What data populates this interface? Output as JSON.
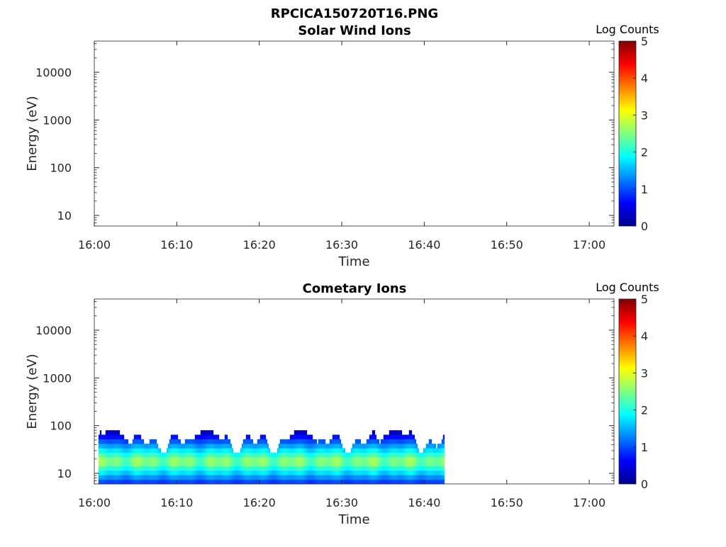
{
  "figure_title": "RPCICA150720T16.PNG",
  "chart_data": [
    {
      "type": "heatmap",
      "title": "Solar Wind Ions",
      "xlabel": "Time",
      "ylabel": "Energy (eV)",
      "x_ticks": [
        "16:00",
        "16:10",
        "16:20",
        "16:30",
        "16:40",
        "16:50",
        "17:00"
      ],
      "x_range_minutes": [
        0,
        63
      ],
      "y_scale": "log",
      "y_range": [
        6,
        45000
      ],
      "y_ticks": [
        10,
        100,
        1000,
        10000
      ],
      "y_tick_labels": [
        "10",
        "100",
        "1000",
        "10000"
      ],
      "colorbar": {
        "label": "Log Counts",
        "range": [
          0,
          5
        ],
        "ticks": [
          "0",
          "1",
          "2",
          "3",
          "4",
          "5"
        ],
        "colormap": "jet",
        "placement": "right"
      },
      "grid": false,
      "data": []
    },
    {
      "type": "heatmap",
      "title": "Cometary Ions",
      "xlabel": "Time",
      "ylabel": "Energy (eV)",
      "x_ticks": [
        "16:00",
        "16:10",
        "16:20",
        "16:30",
        "16:40",
        "16:50",
        "17:00"
      ],
      "x_range_minutes": [
        0,
        63
      ],
      "y_scale": "log",
      "y_range": [
        6,
        45000
      ],
      "y_ticks": [
        10,
        100,
        1000,
        10000
      ],
      "y_tick_labels": [
        "10",
        "100",
        "1000",
        "10000"
      ],
      "colorbar": {
        "label": "Log Counts",
        "range": [
          0,
          5
        ],
        "ticks": [
          "0",
          "1",
          "2",
          "3",
          "4",
          "5"
        ],
        "colormap": "jet",
        "placement": "right"
      },
      "grid": false,
      "data_extent": {
        "time_minutes": [
          0.5,
          42.3
        ],
        "energy_ev": [
          6,
          80
        ]
      },
      "peak_log_counts": 2.6,
      "peak_energy_ev": 18
    }
  ]
}
